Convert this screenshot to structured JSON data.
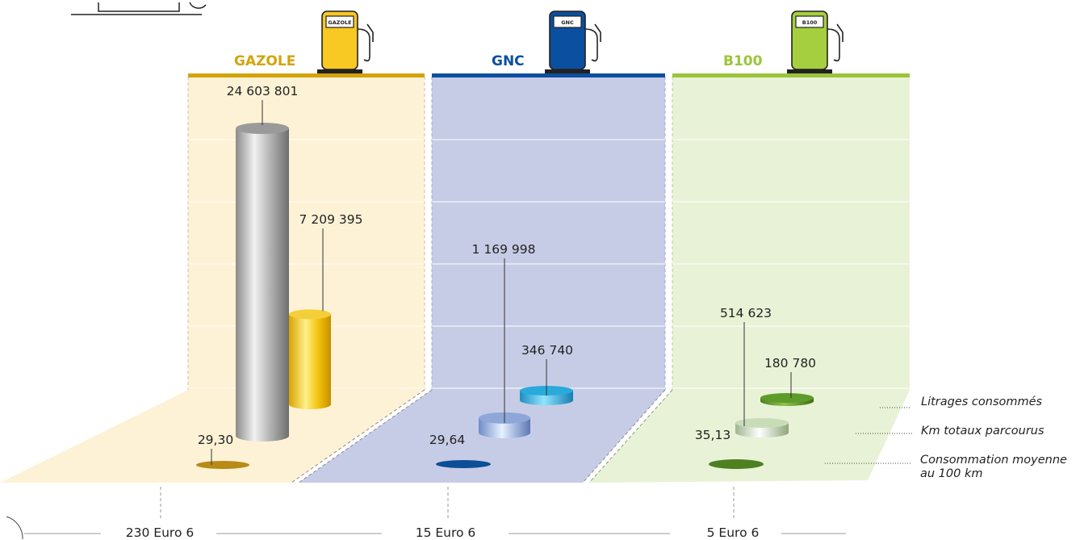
{
  "chart_data": {
    "type": "bar",
    "categories": [
      "GAZOLE",
      "GNC",
      "B100"
    ],
    "category_colors": [
      "#d4a30a",
      "#0b4fa0",
      "#9cc43a"
    ],
    "series": [
      {
        "name": "Litrages consommés",
        "values": [
          7209395,
          346740,
          180780
        ]
      },
      {
        "name": "Km totaux parcourus",
        "values": [
          24603801,
          1169998,
          514623
        ]
      },
      {
        "name": "Consommation moyenne au 100 km",
        "values": [
          29.3,
          29.64,
          35.13
        ]
      }
    ],
    "value_labels": {
      "km": [
        "24 603 801",
        "1 169 998",
        "514 623"
      ],
      "litres": [
        "7 209 395",
        "346 740",
        "180 780"
      ],
      "conso": [
        "29,30",
        "29,64",
        "35,13"
      ]
    },
    "legend": [
      "Litrages consommés",
      "Km totaux parcourus",
      "Consommation moyenne au 100 km"
    ],
    "legend_placement": "right",
    "footer": [
      "230 Euro 6",
      "15 Euro 6",
      "5 Euro 6"
    ],
    "pump_labels": [
      "GAZOLE",
      "GNC",
      "B100"
    ],
    "grid": true,
    "ylim": [
      0,
      27000000
    ]
  }
}
